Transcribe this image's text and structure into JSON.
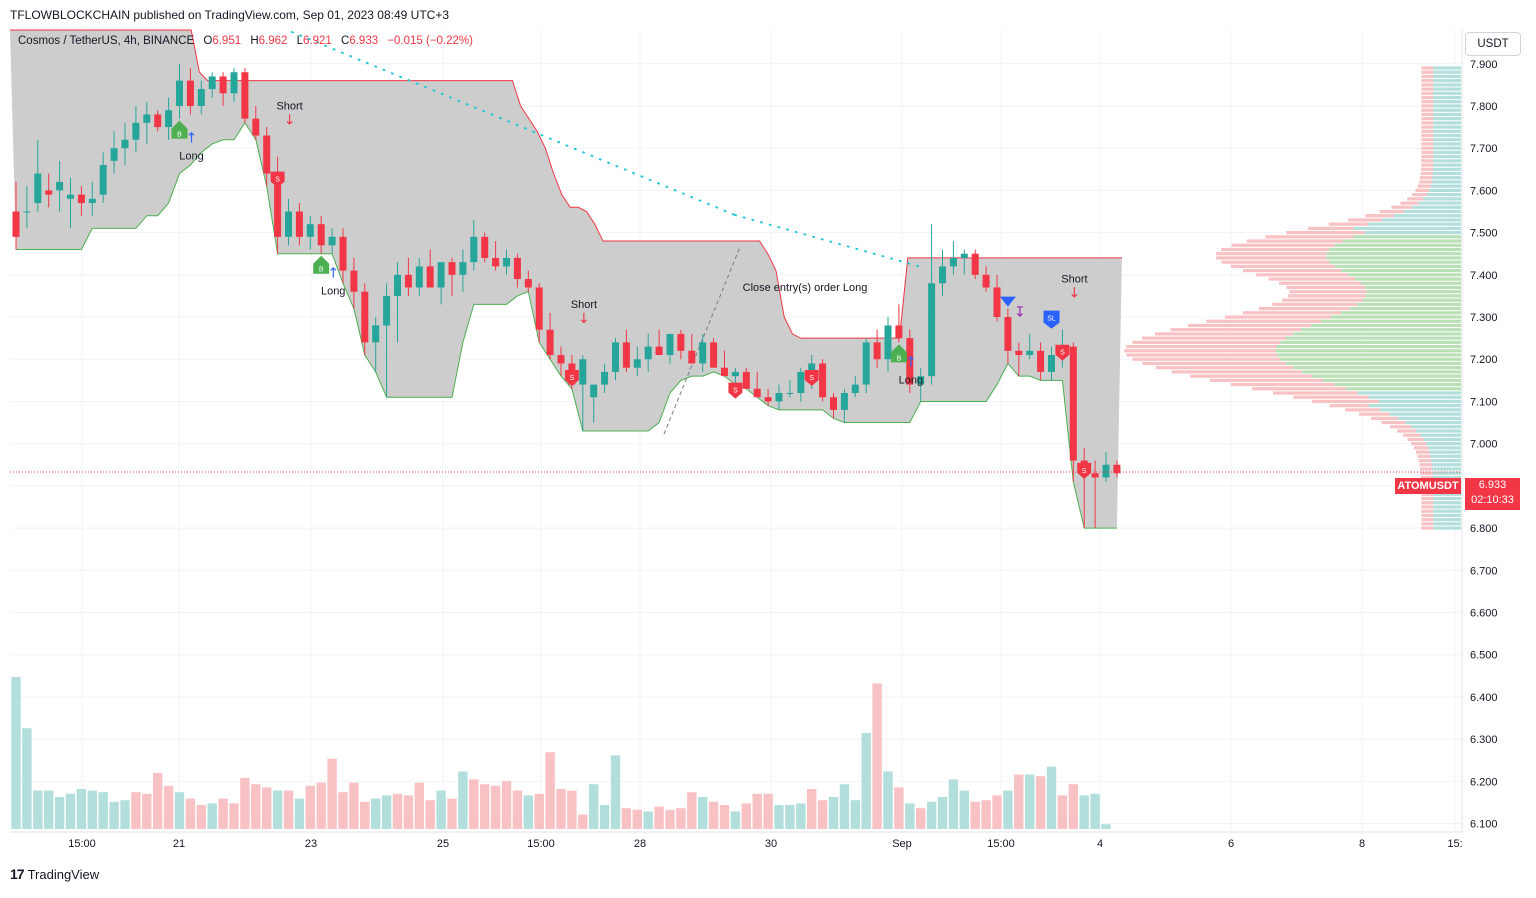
{
  "header": {
    "publisher_line": "TFLOWBLOCKCHAIN published on TradingView.com, Sep 01, 2023 08:49 UTC+3"
  },
  "legend": {
    "symbol": "Cosmos / TetherUS, 4h, BINANCE",
    "open_label": "O",
    "open": "6.951",
    "high_label": "H",
    "high": "6.962",
    "low_label": "L",
    "low": "6.921",
    "close_label": "C",
    "close": "6.933",
    "change": "−0.015 (−0.22%)"
  },
  "currency_button": "USDT",
  "price_tag": {
    "symbol": "ATOMUSDT",
    "price": "6.933",
    "countdown": "02:10:33"
  },
  "brand": {
    "name": "TradingView",
    "logo_text": "17"
  },
  "colors": {
    "up": "#26a69a",
    "down": "#f23645",
    "vol_up": "#b2dfdb",
    "vol_down": "#f8c1c4",
    "cloud": "#c8c8c8",
    "buy_marker": "#4caf50",
    "sell_marker": "#f23645",
    "sl_marker": "#2962ff"
  },
  "chart_data": {
    "type": "candlestick",
    "symbol": "ATOMUSDT",
    "interval": "4h",
    "y_axis": {
      "ticks": [
        "7.900",
        "7.800",
        "7.700",
        "7.600",
        "7.500",
        "7.400",
        "7.300",
        "7.200",
        "7.100",
        "7.000",
        "6.900",
        "6.800",
        "6.700",
        "6.600",
        "6.500",
        "6.400",
        "6.300",
        "6.200",
        "6.100"
      ],
      "range": [
        6.08,
        7.98
      ]
    },
    "x_axis": {
      "ticks": [
        "15:00",
        "21",
        "23",
        "25",
        "15:00",
        "28",
        "30",
        "Sep",
        "15:00",
        "4",
        "6",
        "8",
        "15:"
      ]
    },
    "candles": [
      [
        7.55,
        7.62,
        7.46,
        7.49
      ],
      [
        7.55,
        7.61,
        7.51,
        7.55
      ],
      [
        7.57,
        7.72,
        7.55,
        7.64
      ],
      [
        7.6,
        7.64,
        7.56,
        7.59
      ],
      [
        7.6,
        7.67,
        7.55,
        7.62
      ],
      [
        7.58,
        7.63,
        7.51,
        7.59
      ],
      [
        7.59,
        7.61,
        7.54,
        7.57
      ],
      [
        7.57,
        7.62,
        7.54,
        7.58
      ],
      [
        7.59,
        7.69,
        7.57,
        7.66
      ],
      [
        7.67,
        7.74,
        7.64,
        7.7
      ],
      [
        7.7,
        7.76,
        7.66,
        7.72
      ],
      [
        7.72,
        7.8,
        7.69,
        7.76
      ],
      [
        7.76,
        7.81,
        7.71,
        7.78
      ],
      [
        7.78,
        7.79,
        7.74,
        7.75
      ],
      [
        7.75,
        7.82,
        7.72,
        7.79
      ],
      [
        7.8,
        7.9,
        7.77,
        7.86
      ],
      [
        7.86,
        7.89,
        7.78,
        7.8
      ],
      [
        7.8,
        7.86,
        7.78,
        7.84
      ],
      [
        7.84,
        7.88,
        7.82,
        7.87
      ],
      [
        7.87,
        7.88,
        7.8,
        7.83
      ],
      [
        7.83,
        7.89,
        7.81,
        7.88
      ],
      [
        7.88,
        7.89,
        7.76,
        7.77
      ],
      [
        7.77,
        7.8,
        7.72,
        7.73
      ],
      [
        7.73,
        7.75,
        7.61,
        7.64
      ],
      [
        7.64,
        7.68,
        7.45,
        7.49
      ],
      [
        7.49,
        7.58,
        7.47,
        7.55
      ],
      [
        7.55,
        7.57,
        7.47,
        7.49
      ],
      [
        7.49,
        7.54,
        7.46,
        7.52
      ],
      [
        7.52,
        7.54,
        7.45,
        7.47
      ],
      [
        7.47,
        7.51,
        7.45,
        7.49
      ],
      [
        7.49,
        7.51,
        7.38,
        7.41
      ],
      [
        7.41,
        7.44,
        7.32,
        7.36
      ],
      [
        7.36,
        7.38,
        7.21,
        7.24
      ],
      [
        7.24,
        7.3,
        7.17,
        7.28
      ],
      [
        7.28,
        7.38,
        7.11,
        7.35
      ],
      [
        7.35,
        7.43,
        7.24,
        7.4
      ],
      [
        7.4,
        7.44,
        7.35,
        7.37
      ],
      [
        7.37,
        7.44,
        7.35,
        7.42
      ],
      [
        7.42,
        7.46,
        7.37,
        7.37
      ],
      [
        7.37,
        7.43,
        7.33,
        7.43
      ],
      [
        7.43,
        7.44,
        7.35,
        7.4
      ],
      [
        7.4,
        7.46,
        7.36,
        7.43
      ],
      [
        7.43,
        7.53,
        7.41,
        7.49
      ],
      [
        7.49,
        7.5,
        7.43,
        7.44
      ],
      [
        7.44,
        7.48,
        7.41,
        7.42
      ],
      [
        7.42,
        7.46,
        7.4,
        7.44
      ],
      [
        7.44,
        7.45,
        7.37,
        7.39
      ],
      [
        7.39,
        7.41,
        7.36,
        7.37
      ],
      [
        7.37,
        7.38,
        7.24,
        7.27
      ],
      [
        7.27,
        7.31,
        7.2,
        7.21
      ],
      [
        7.21,
        7.23,
        7.16,
        7.19
      ],
      [
        7.19,
        7.21,
        7.13,
        7.14
      ],
      [
        7.14,
        7.21,
        7.03,
        7.2
      ],
      [
        7.11,
        7.13,
        7.05,
        7.14
      ],
      [
        7.14,
        7.19,
        7.12,
        7.17
      ],
      [
        7.17,
        7.25,
        7.15,
        7.24
      ],
      [
        7.24,
        7.27,
        7.17,
        7.18
      ],
      [
        7.18,
        7.23,
        7.16,
        7.2
      ],
      [
        7.2,
        7.26,
        7.17,
        7.23
      ],
      [
        7.23,
        7.27,
        7.21,
        7.21
      ],
      [
        7.21,
        7.26,
        7.19,
        7.26
      ],
      [
        7.26,
        7.27,
        7.2,
        7.22
      ],
      [
        7.22,
        7.26,
        7.19,
        7.19
      ],
      [
        7.19,
        7.26,
        7.17,
        7.24
      ],
      [
        7.24,
        7.25,
        7.18,
        7.18
      ],
      [
        7.18,
        7.22,
        7.16,
        7.16
      ],
      [
        7.16,
        7.18,
        7.14,
        7.17
      ],
      [
        7.17,
        7.18,
        7.13,
        7.13
      ],
      [
        7.13,
        7.17,
        7.11,
        7.11
      ],
      [
        7.11,
        7.13,
        7.09,
        7.1
      ],
      [
        7.1,
        7.14,
        7.08,
        7.12
      ],
      [
        7.12,
        7.15,
        7.11,
        7.12
      ],
      [
        7.12,
        7.18,
        7.1,
        7.17
      ],
      [
        7.17,
        7.21,
        7.13,
        7.19
      ],
      [
        7.19,
        7.2,
        7.1,
        7.11
      ],
      [
        7.11,
        7.12,
        7.06,
        7.08
      ],
      [
        7.08,
        7.13,
        7.05,
        7.12
      ],
      [
        7.12,
        7.16,
        7.11,
        7.14
      ],
      [
        7.14,
        7.25,
        7.12,
        7.24
      ],
      [
        7.24,
        7.27,
        7.18,
        7.2
      ],
      [
        7.2,
        7.3,
        7.17,
        7.28
      ],
      [
        7.28,
        7.33,
        7.24,
        7.25
      ],
      [
        7.25,
        7.27,
        7.12,
        7.14
      ],
      [
        7.14,
        7.18,
        7.1,
        7.16
      ],
      [
        7.16,
        7.52,
        7.14,
        7.38
      ],
      [
        7.38,
        7.46,
        7.35,
        7.42
      ],
      [
        7.42,
        7.48,
        7.4,
        7.44
      ],
      [
        7.44,
        7.46,
        7.4,
        7.45
      ],
      [
        7.45,
        7.46,
        7.39,
        7.4
      ],
      [
        7.4,
        7.42,
        7.36,
        7.37
      ],
      [
        7.37,
        7.4,
        7.29,
        7.3
      ],
      [
        7.3,
        7.32,
        7.19,
        7.22
      ],
      [
        7.22,
        7.24,
        7.16,
        7.21
      ],
      [
        7.21,
        7.26,
        7.2,
        7.22
      ],
      [
        7.22,
        7.24,
        7.15,
        7.17
      ],
      [
        7.17,
        7.23,
        7.15,
        7.21
      ],
      [
        7.21,
        7.27,
        7.18,
        7.23
      ],
      [
        7.23,
        7.24,
        6.91,
        6.96
      ],
      [
        6.96,
        6.99,
        6.8,
        6.93
      ],
      [
        6.93,
        6.96,
        6.8,
        6.92
      ],
      [
        6.92,
        6.98,
        6.91,
        6.95
      ],
      [
        6.95,
        6.96,
        6.92,
        6.93
      ]
    ],
    "volume_up_flags": [
      1,
      1,
      1,
      1,
      1,
      1,
      1,
      1,
      1,
      1,
      1,
      0,
      0,
      0,
      0,
      1,
      0,
      0,
      1,
      0,
      0,
      0,
      0,
      0,
      1,
      0,
      1,
      0,
      0,
      0,
      0,
      0,
      0,
      1,
      1,
      0,
      0,
      0,
      0,
      1,
      0,
      1,
      0,
      0,
      0,
      0,
      0,
      1,
      0,
      0,
      0,
      0,
      0,
      1,
      1,
      1,
      0,
      0,
      1,
      0,
      0,
      0,
      0,
      1,
      0,
      0,
      1,
      0,
      0,
      0,
      1,
      1,
      1,
      0,
      0,
      1,
      1,
      1,
      1,
      0,
      1,
      0,
      1,
      0,
      1,
      1,
      1,
      1,
      0,
      0,
      0,
      1,
      0,
      1,
      0,
      1,
      0,
      0,
      1,
      1,
      1
    ],
    "volume_relative": [
      0.95,
      0.63,
      0.24,
      0.24,
      0.2,
      0.22,
      0.25,
      0.24,
      0.23,
      0.17,
      0.18,
      0.23,
      0.22,
      0.35,
      0.27,
      0.23,
      0.19,
      0.15,
      0.16,
      0.19,
      0.16,
      0.32,
      0.28,
      0.26,
      0.24,
      0.24,
      0.19,
      0.27,
      0.29,
      0.44,
      0.23,
      0.29,
      0.17,
      0.19,
      0.21,
      0.22,
      0.21,
      0.29,
      0.18,
      0.24,
      0.19,
      0.36,
      0.31,
      0.28,
      0.27,
      0.3,
      0.24,
      0.21,
      0.22,
      0.48,
      0.25,
      0.24,
      0.09,
      0.28,
      0.15,
      0.46,
      0.13,
      0.12,
      0.11,
      0.14,
      0.12,
      0.13,
      0.23,
      0.2,
      0.17,
      0.15,
      0.11,
      0.16,
      0.22,
      0.22,
      0.15,
      0.15,
      0.16,
      0.25,
      0.18,
      0.2,
      0.28,
      0.18,
      0.6,
      0.91,
      0.36,
      0.26,
      0.16,
      0.13,
      0.17,
      0.2,
      0.31,
      0.24,
      0.17,
      0.18,
      0.21,
      0.24,
      0.34,
      0.34,
      0.33,
      0.39,
      0.21,
      0.28,
      0.21,
      0.22,
      0.03
    ],
    "cloud_upper": [
      7.98,
      7.98,
      7.98,
      7.98,
      7.98,
      7.98,
      7.98,
      7.98,
      7.98,
      7.98,
      7.98,
      7.98,
      7.98,
      7.98,
      7.98,
      7.98,
      7.98,
      7.98,
      7.98,
      7.98,
      7.98,
      7.98,
      7.98,
      7.88,
      7.86,
      7.86,
      7.86,
      7.86,
      7.86,
      7.86,
      7.86,
      7.86,
      7.86,
      7.86,
      7.86,
      7.86,
      7.86,
      7.86,
      7.86,
      7.86,
      7.86,
      7.86,
      7.86,
      7.86,
      7.86,
      7.86,
      7.86,
      7.86,
      7.86,
      7.86,
      7.86,
      7.86,
      7.86,
      7.86,
      7.86,
      7.86,
      7.86,
      7.86,
      7.86,
      7.86,
      7.86,
      7.86,
      7.8,
      7.77,
      7.74,
      7.7,
      7.64,
      7.59,
      7.56,
      7.56,
      7.55,
      7.52,
      7.48,
      7.48,
      7.48,
      7.48,
      7.48,
      7.48,
      7.48,
      7.48,
      7.48,
      7.48,
      7.48,
      7.48,
      7.48,
      7.48,
      7.48,
      7.48,
      7.48,
      7.48,
      7.48,
      7.48,
      7.45,
      7.41,
      7.3,
      7.26,
      7.25,
      7.25,
      7.25,
      7.25,
      7.25,
      7.25,
      7.25,
      7.25,
      7.25,
      7.25,
      7.25,
      7.25,
      7.25,
      7.44,
      7.44,
      7.44,
      7.44,
      7.44,
      7.44,
      7.44,
      7.44,
      7.44,
      7.44,
      7.44,
      7.44,
      7.44,
      7.44,
      7.44,
      7.44,
      7.44,
      7.44,
      7.44,
      7.44,
      7.44,
      7.44,
      7.44,
      7.44,
      7.44,
      7.44,
      7.44
    ],
    "signals": [
      {
        "type": "buy",
        "label": "B",
        "text": "Long",
        "bar": 15
      },
      {
        "type": "sell",
        "label": "S",
        "text": "Short",
        "bar": 24
      },
      {
        "type": "buy",
        "label": "B",
        "text": "Long",
        "bar": 28
      },
      {
        "type": "sell",
        "label": "S",
        "text": "Short",
        "bar": 51
      },
      {
        "type": "sell",
        "label": "S",
        "text": "",
        "bar": 66
      },
      {
        "type": "sell",
        "label": "S",
        "text": "",
        "bar": 73
      },
      {
        "type": "buy",
        "label": "B",
        "text": "Long",
        "bar": 81
      },
      {
        "type": "close",
        "label": "",
        "text": "Close entry(s) order Long",
        "bar": 91
      },
      {
        "type": "sl",
        "label": "SL",
        "text": "",
        "bar": 95
      },
      {
        "type": "sell",
        "label": "S",
        "text": "Short",
        "bar": 96
      },
      {
        "type": "sell",
        "label": "S",
        "text": "",
        "bar": 98
      }
    ]
  }
}
